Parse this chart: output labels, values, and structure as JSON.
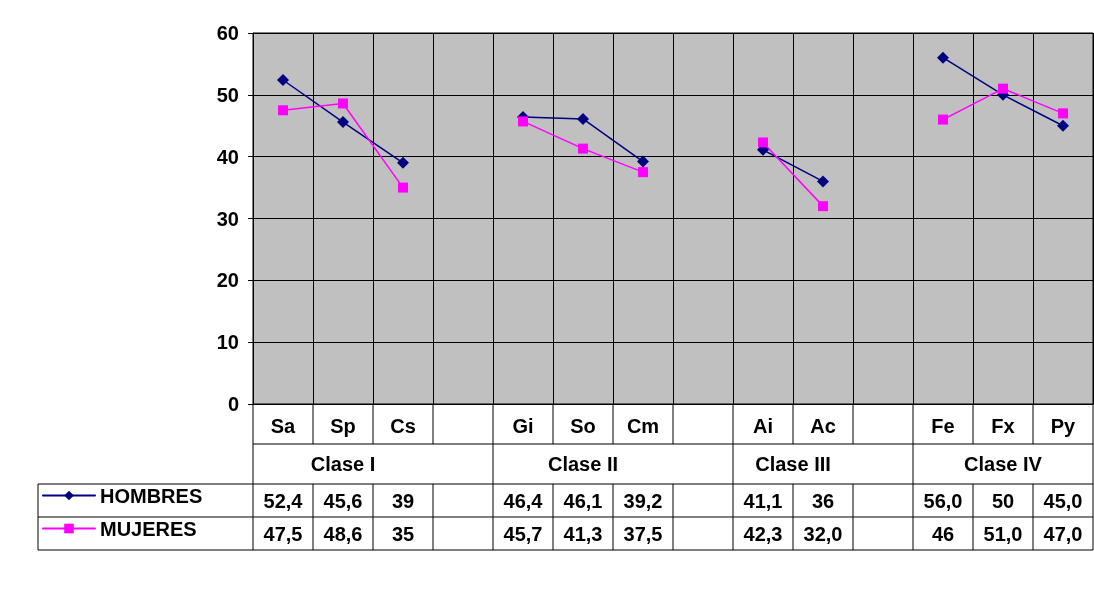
{
  "chart_data": {
    "type": "line",
    "categories": [
      "Sa",
      "Sp",
      "Cs",
      null,
      "Gi",
      "So",
      "Cm",
      null,
      "Ai",
      "Ac",
      null,
      "Fe",
      "Fx",
      "Py"
    ],
    "series": [
      {
        "name": "HOMBRES",
        "color": "#000080",
        "marker": "diamond",
        "values": [
          52.4,
          45.6,
          39,
          null,
          46.4,
          46.1,
          39.2,
          null,
          41.1,
          36,
          null,
          56.0,
          50,
          45.0
        ],
        "value_labels": [
          "52,4",
          "45,6",
          "39",
          null,
          "46,4",
          "46,1",
          "39,2",
          null,
          "41,1",
          "36",
          null,
          "56,0",
          "50",
          "45,0"
        ]
      },
      {
        "name": "MUJERES",
        "color": "#ff00ff",
        "marker": "square",
        "values": [
          47.5,
          48.6,
          35,
          null,
          45.7,
          41.3,
          37.5,
          null,
          42.3,
          32.0,
          null,
          46,
          51.0,
          47.0
        ],
        "value_labels": [
          "47,5",
          "48,6",
          "35",
          null,
          "45,7",
          "41,3",
          "37,5",
          null,
          "42,3",
          "32,0",
          null,
          "46",
          "51,0",
          "47,0"
        ]
      }
    ],
    "annotations": [
      "Clase I",
      "Clase II",
      "Clase III",
      "Clase IV"
    ],
    "ylim": [
      0,
      60
    ],
    "yticks": [
      0,
      10,
      20,
      30,
      40,
      50,
      60
    ],
    "grid": true,
    "legend": "bottom left",
    "line_style": "solid"
  }
}
